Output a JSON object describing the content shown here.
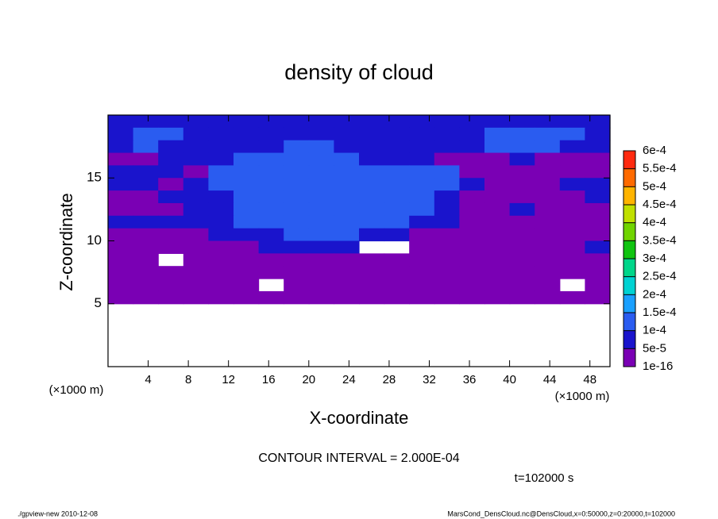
{
  "chart_data": {
    "type": "contour",
    "title": "density of cloud",
    "x_label": "X-coordinate",
    "y_label": "Z-coordinate",
    "x_unit_label": "(×1000 m)",
    "y_unit_label": "(×1000 m)",
    "contour_note": "CONTOUR INTERVAL = 2.000E-04",
    "time_label": "t=102000 s",
    "footer_left": "./gpview-new  2010-12-08",
    "footer_right": "MarsCond_DensCloud.nc@DensCloud,x=0:50000,z=0:20000,t=102000",
    "xlim": [
      0,
      50
    ],
    "ylim": [
      0,
      20
    ],
    "xticks": [
      4,
      8,
      12,
      16,
      20,
      24,
      28,
      32,
      36,
      40,
      44,
      48
    ],
    "yticks": [
      5,
      10,
      15
    ],
    "colorbar": {
      "levels": [
        {
          "value": 1e-16,
          "label": "1e-16"
        },
        {
          "value": 5e-05,
          "label": "5e-5"
        },
        {
          "value": 0.0001,
          "label": "1e-4"
        },
        {
          "value": 0.00015,
          "label": "1.5e-4"
        },
        {
          "value": 0.0002,
          "label": "2e-4"
        },
        {
          "value": 0.00025,
          "label": "2.5e-4"
        },
        {
          "value": 0.0003,
          "label": "3e-4"
        },
        {
          "value": 0.00035,
          "label": "3.5e-4"
        },
        {
          "value": 0.0004,
          "label": "4e-4"
        },
        {
          "value": 0.00045,
          "label": "4.5e-4"
        },
        {
          "value": 0.0005,
          "label": "5e-4"
        },
        {
          "value": 0.00055,
          "label": "5.5e-4"
        },
        {
          "value": 0.0006,
          "label": "6e-4"
        }
      ],
      "colors": [
        "#7a00b4",
        "#1a14cc",
        "#2a5cf0",
        "#1aa0ff",
        "#00d2d2",
        "#00d68a",
        "#10c410",
        "#70d400",
        "#c0e000",
        "#ffb400",
        "#ff6a00",
        "#ff2a10",
        "#ff8c8c"
      ]
    },
    "field": {
      "x": [
        1.25,
        3.75,
        6.25,
        8.75,
        11.25,
        13.75,
        16.25,
        18.75,
        21.25,
        23.75,
        26.25,
        28.75,
        31.25,
        33.75,
        36.25,
        38.75,
        41.25,
        43.75,
        46.25,
        48.75
      ],
      "y": [
        19.5,
        18.5,
        17.5,
        16.5,
        15.5,
        14.5,
        13.5,
        12.5,
        11.5,
        10.5,
        9.5,
        8.5,
        7.5,
        6.5,
        5.5
      ],
      "z": [
        [
          7e-05,
          7e-05,
          7e-05,
          7e-05,
          7e-05,
          7e-05,
          7e-05,
          7e-05,
          7e-05,
          7e-05,
          7e-05,
          7e-05,
          7e-05,
          7e-05,
          7e-05,
          7e-05,
          7e-05,
          7e-05,
          7e-05,
          7e-05
        ],
        [
          7e-05,
          0.00012,
          0.00012,
          7e-05,
          7e-05,
          7e-05,
          7e-05,
          7e-05,
          7e-05,
          7e-05,
          7e-05,
          7e-05,
          7e-05,
          7e-05,
          7e-05,
          0.00012,
          0.00012,
          0.00012,
          0.00012,
          7e-05
        ],
        [
          7e-05,
          0.00012,
          7e-05,
          7e-05,
          7e-05,
          7e-05,
          7e-05,
          0.00012,
          0.00012,
          7e-05,
          7e-05,
          7e-05,
          7e-05,
          7e-05,
          7e-05,
          0.00012,
          0.00012,
          0.00012,
          7e-05,
          7e-05
        ],
        [
          5e-06,
          5e-06,
          7e-05,
          7e-05,
          7e-05,
          0.00012,
          0.00012,
          0.00012,
          0.00012,
          0.00012,
          7e-05,
          7e-05,
          7e-05,
          5e-06,
          5e-06,
          5e-06,
          7e-05,
          5e-06,
          5e-06,
          5e-06
        ],
        [
          7e-05,
          7e-05,
          7e-05,
          5e-06,
          0.00012,
          0.00012,
          0.00012,
          0.00012,
          0.00012,
          0.00012,
          0.00012,
          0.00012,
          0.00012,
          0.00012,
          5e-06,
          5e-06,
          5e-06,
          5e-06,
          5e-06,
          5e-06
        ],
        [
          7e-05,
          7e-05,
          5e-06,
          7e-05,
          0.00012,
          0.00012,
          0.00012,
          0.00012,
          0.00012,
          0.00012,
          0.00012,
          0.00012,
          0.00012,
          0.00012,
          7e-05,
          5e-06,
          5e-06,
          5e-06,
          7e-05,
          7e-05
        ],
        [
          5e-06,
          5e-06,
          7e-05,
          7e-05,
          7e-05,
          0.00012,
          0.00012,
          0.00012,
          0.00012,
          0.00012,
          0.00012,
          0.00012,
          0.00012,
          7e-05,
          5e-06,
          5e-06,
          5e-06,
          5e-06,
          5e-06,
          7e-05
        ],
        [
          5e-06,
          5e-06,
          5e-06,
          7e-05,
          7e-05,
          0.00012,
          0.00012,
          0.00012,
          0.00012,
          0.00012,
          0.00012,
          0.00012,
          0.00012,
          7e-05,
          5e-06,
          5e-06,
          7e-05,
          5e-06,
          5e-06,
          5e-06
        ],
        [
          7e-05,
          7e-05,
          7e-05,
          7e-05,
          7e-05,
          0.00012,
          0.00012,
          0.00012,
          0.00012,
          0.00012,
          0.00012,
          0.00012,
          7e-05,
          7e-05,
          5e-06,
          5e-06,
          5e-06,
          5e-06,
          5e-06,
          5e-06
        ],
        [
          5e-06,
          5e-06,
          5e-06,
          5e-06,
          7e-05,
          7e-05,
          7e-05,
          0.00012,
          0.00012,
          0.00012,
          7e-05,
          7e-05,
          5e-06,
          5e-06,
          5e-06,
          5e-06,
          5e-06,
          5e-06,
          5e-06,
          5e-06
        ],
        [
          5e-06,
          5e-06,
          5e-06,
          5e-06,
          5e-06,
          5e-06,
          7e-05,
          7e-05,
          7e-05,
          7e-05,
          null,
          null,
          5e-06,
          5e-06,
          5e-06,
          5e-06,
          5e-06,
          5e-06,
          5e-06,
          7e-05
        ],
        [
          5e-06,
          5e-06,
          null,
          5e-06,
          5e-06,
          5e-06,
          5e-06,
          5e-06,
          5e-06,
          5e-06,
          5e-06,
          5e-06,
          5e-06,
          5e-06,
          5e-06,
          5e-06,
          5e-06,
          5e-06,
          5e-06,
          5e-06
        ],
        [
          5e-06,
          5e-06,
          5e-06,
          5e-06,
          5e-06,
          5e-06,
          5e-06,
          5e-06,
          5e-06,
          5e-06,
          5e-06,
          5e-06,
          5e-06,
          5e-06,
          5e-06,
          5e-06,
          5e-06,
          5e-06,
          5e-06,
          5e-06
        ],
        [
          5e-06,
          5e-06,
          5e-06,
          5e-06,
          5e-06,
          5e-06,
          null,
          5e-06,
          5e-06,
          5e-06,
          5e-06,
          5e-06,
          5e-06,
          5e-06,
          5e-06,
          5e-06,
          5e-06,
          5e-06,
          null,
          5e-06
        ],
        [
          5e-06,
          5e-06,
          5e-06,
          5e-06,
          5e-06,
          5e-06,
          5e-06,
          5e-06,
          5e-06,
          5e-06,
          5e-06,
          5e-06,
          5e-06,
          5e-06,
          5e-06,
          5e-06,
          5e-06,
          5e-06,
          5e-06,
          5e-06
        ]
      ]
    }
  }
}
